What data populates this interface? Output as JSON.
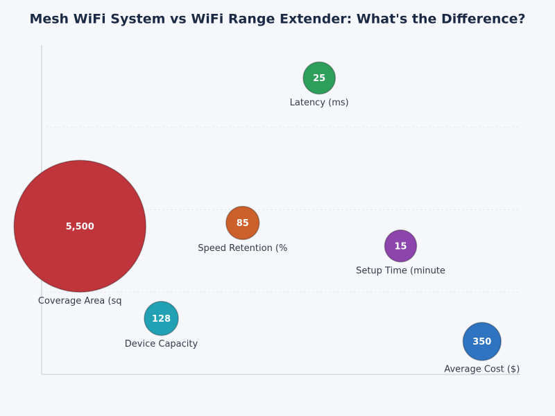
{
  "chart_data": {
    "type": "bubble",
    "title": "Mesh WiFi System vs WiFi Range Extender: What's the Difference?",
    "xlim": [
      0,
      100
    ],
    "ylim": [
      0,
      100
    ],
    "yticks": [
      25,
      50,
      75
    ],
    "grid": true,
    "points": [
      {
        "name": "Latency (ms)",
        "color": "#2e9e5b",
        "x": 58,
        "y": 90,
        "size": 25
      },
      {
        "name": "Coverage Area (sq",
        "color": "#c0343c",
        "x": 8,
        "y": 45,
        "size": 5500,
        "size_label": "5,500"
      },
      {
        "name": "Speed Retention (%",
        "color": "#cc5f2a",
        "x": 42,
        "y": 46,
        "size": 85
      },
      {
        "name": "Setup Time (minute",
        "color": "#8e44ad",
        "x": 75,
        "y": 39,
        "size": 15
      },
      {
        "name": "Device Capacity",
        "color": "#22a0b4",
        "x": 25,
        "y": 17,
        "size": 128
      },
      {
        "name": "Average Cost ($)",
        "color": "#2f74c0",
        "x": 92,
        "y": 10,
        "size": 350
      }
    ]
  }
}
